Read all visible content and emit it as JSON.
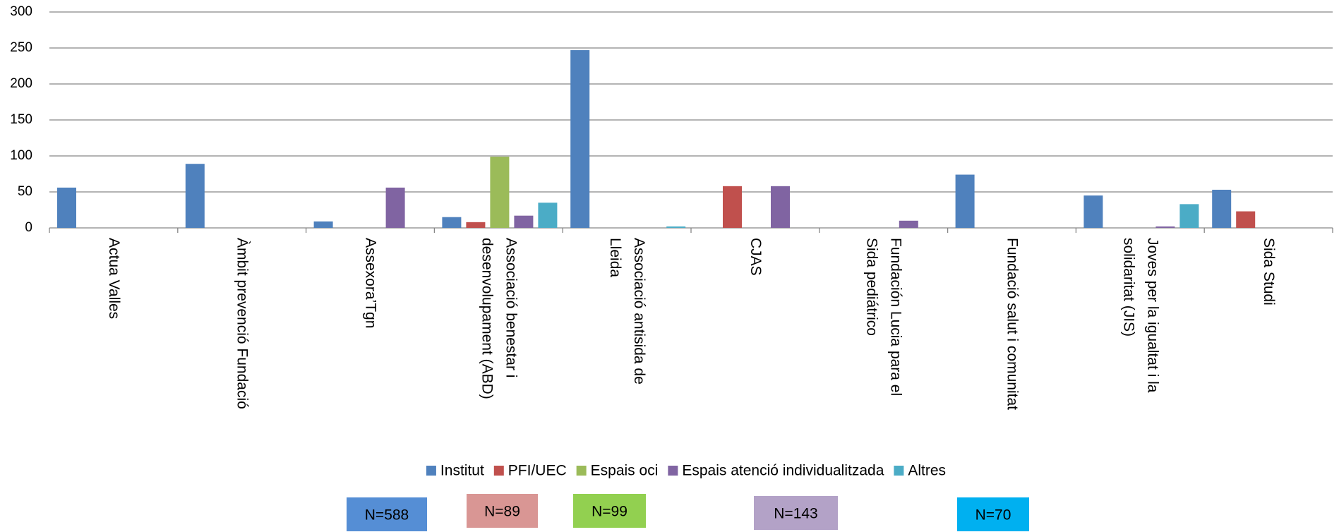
{
  "chart_data": {
    "type": "bar",
    "categories": [
      "Actua Valles",
      "Àmbit prevenció Fundació",
      "Assexora’Tgn",
      "Associació benestar i desenvolupament (ABD)",
      "Associació antisida de Lleida",
      "CJAS",
      "Fundación Lucia para el Sida pediátrico",
      "Fundació salut i comunitat",
      "Joves per la igualtat i la solidaritat (JIS)",
      "Sida Studi"
    ],
    "series": [
      {
        "name": "Institut",
        "color": "#4f81bd",
        "values": [
          56,
          89,
          9,
          15,
          247,
          0,
          0,
          74,
          45,
          53
        ]
      },
      {
        "name": "PFI/UEC",
        "color": "#c0504d",
        "values": [
          0,
          0,
          0,
          8,
          0,
          58,
          0,
          0,
          0,
          23
        ]
      },
      {
        "name": "Espais oci",
        "color": "#9bbb59",
        "values": [
          0,
          0,
          0,
          99,
          0,
          0,
          0,
          0,
          0,
          0
        ]
      },
      {
        "name": "Espais atenció individualitzada",
        "color": "#8064a2",
        "values": [
          0,
          0,
          56,
          17,
          0,
          58,
          10,
          0,
          2,
          0
        ]
      },
      {
        "name": "Altres",
        "color": "#4bacc6",
        "values": [
          0,
          0,
          0,
          35,
          2,
          0,
          0,
          0,
          33,
          0
        ]
      }
    ],
    "ylim": [
      0,
      300
    ],
    "yticks": [
      0,
      50,
      100,
      150,
      200,
      250,
      300
    ],
    "grid": true,
    "legend": "bottom",
    "annotations": [
      {
        "text": "N=588",
        "color": "#558ed5"
      },
      {
        "text": "N=89",
        "color": "#d99694"
      },
      {
        "text": "N=99",
        "color": "#92d050"
      },
      {
        "text": "N=143",
        "color": "#b3a2c7"
      },
      {
        "text": "N=70",
        "color": "#00b0f0"
      }
    ]
  }
}
